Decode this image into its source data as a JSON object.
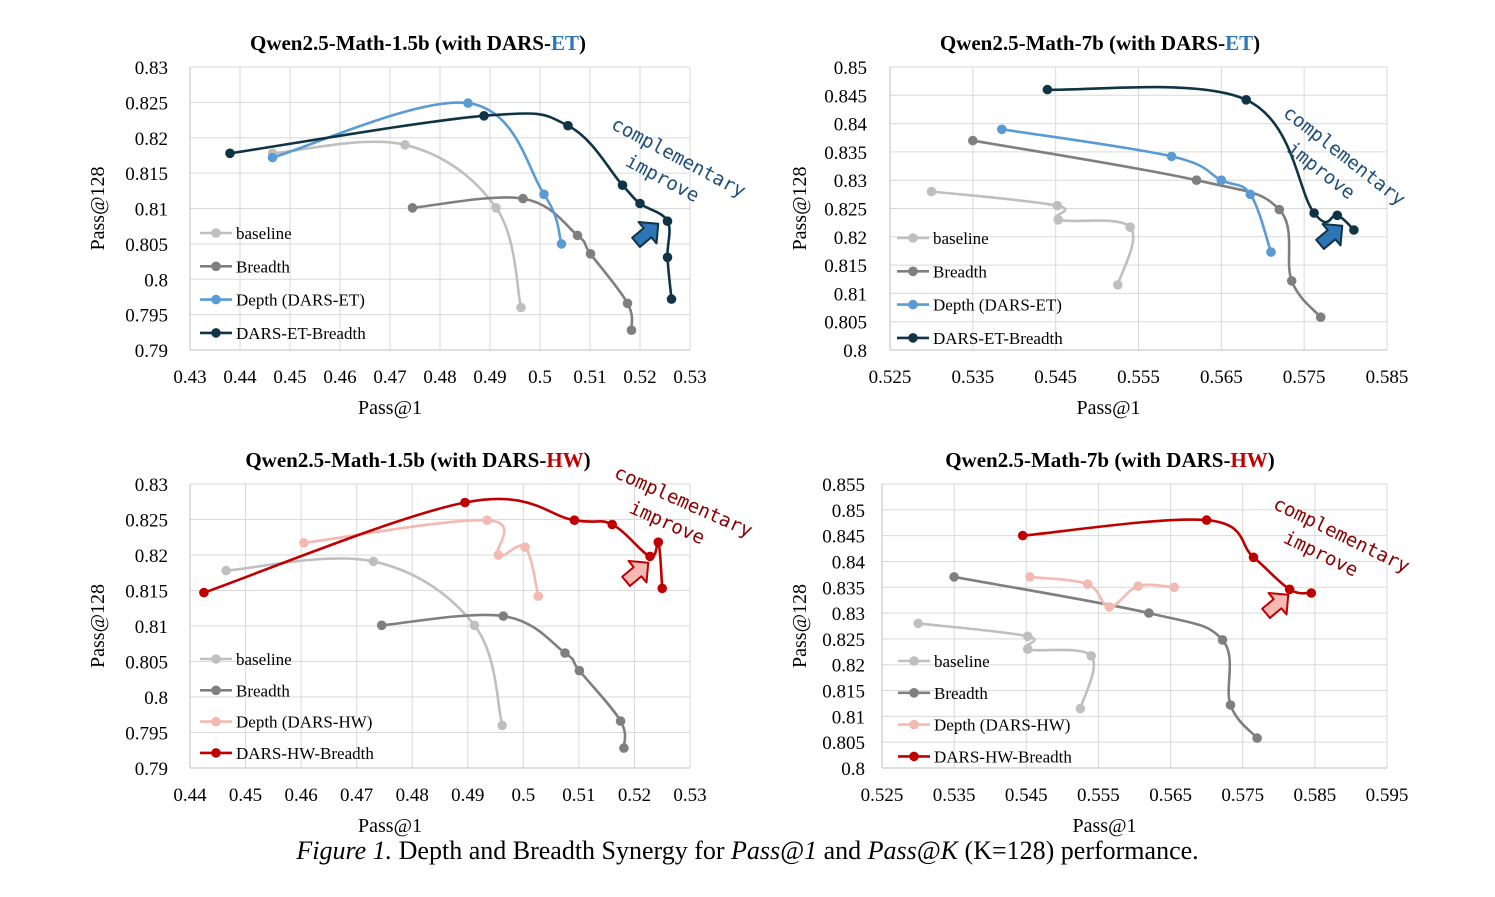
{
  "caption": {
    "label": "Figure 1.",
    "text_a": " Depth and Breadth Synergy for ",
    "em1": "Pass@1",
    "text_b": " and ",
    "em2": "Pass@K",
    "text_c": " (K=128) performance."
  },
  "annotation": {
    "line1": "complementary",
    "line2": "improve"
  },
  "colors": {
    "baseline": "#bfbfbf",
    "breadth": "#7f7f7f",
    "depth_et": "#5b9bd5",
    "et_breadth": "#0f3446",
    "depth_hw": "#f4b9b2",
    "hw_breadth": "#c00000",
    "et_accent": "#2e75b6",
    "hw_accent": "#c00000"
  },
  "chart_data": [
    {
      "type": "line",
      "title": "Qwen2.5-Math-1.5b (with DARS-",
      "title_accent": "ET",
      "title_end": ")",
      "xlabel": "Pass@1",
      "ylabel": "Pass@128",
      "xlim": [
        0.43,
        0.53
      ],
      "ylim": [
        0.79,
        0.83
      ],
      "xticks": [
        0.43,
        0.44,
        0.45,
        0.46,
        0.47,
        0.48,
        0.49,
        0.5,
        0.51,
        0.52,
        0.53
      ],
      "xtick_labels": [
        "0.43",
        "0.44",
        "0.45",
        "0.46",
        "0.47",
        "0.48",
        "0.49",
        "0.5",
        "0.51",
        "0.52",
        "0.53"
      ],
      "yticks": [
        0.79,
        0.795,
        0.8,
        0.805,
        0.81,
        0.815,
        0.82,
        0.825,
        0.83
      ],
      "ytick_labels": [
        "0.79",
        "0.795",
        "0.8",
        "0.805",
        "0.81",
        "0.815",
        "0.82",
        "0.825",
        "0.83"
      ],
      "legend_position": "bottom-left",
      "grid": true,
      "series": [
        {
          "name": "baseline",
          "color": "#bfbfbf",
          "points": [
            [
              0.4465,
              0.8178
            ],
            [
              0.473,
              0.819
            ],
            [
              0.4912,
              0.8101
            ],
            [
              0.4962,
              0.796
            ]
          ]
        },
        {
          "name": "Breadth",
          "color": "#7f7f7f",
          "points": [
            [
              0.4745,
              0.8101
            ],
            [
              0.4966,
              0.8114
            ],
            [
              0.5075,
              0.8062
            ],
            [
              0.5101,
              0.8036
            ],
            [
              0.5175,
              0.7966
            ],
            [
              0.5183,
              0.7928
            ]
          ]
        },
        {
          "name": "Depth (DARS-ET)",
          "color": "#5b9bd5",
          "points": [
            [
              0.4465,
              0.8172
            ],
            [
              0.4856,
              0.8249
            ],
            [
              0.5008,
              0.812
            ],
            [
              0.5043,
              0.805
            ]
          ]
        },
        {
          "name": "DARS-ET-Breadth",
          "color": "#0f3446",
          "points": [
            [
              0.438,
              0.8178
            ],
            [
              0.4888,
              0.8231
            ],
            [
              0.5056,
              0.8217
            ],
            [
              0.5165,
              0.8133
            ],
            [
              0.52,
              0.8107
            ],
            [
              0.5255,
              0.8082
            ],
            [
              0.5255,
              0.8031
            ],
            [
              0.5263,
              0.7972
            ]
          ]
        }
      ]
    },
    {
      "type": "line",
      "title": "Qwen2.5-Math-7b (with DARS-",
      "title_accent": "ET",
      "title_end": ")",
      "xlabel": "Pass@1",
      "ylabel": "Pass@128",
      "xlim": [
        0.525,
        0.585
      ],
      "ylim": [
        0.8,
        0.85
      ],
      "xticks": [
        0.525,
        0.535,
        0.545,
        0.555,
        0.565,
        0.575,
        0.585
      ],
      "xtick_labels": [
        "0.525",
        "0.535",
        "0.545",
        "0.555",
        "0.565",
        "0.575",
        "0.585"
      ],
      "yticks": [
        0.8,
        0.805,
        0.81,
        0.815,
        0.82,
        0.825,
        0.83,
        0.835,
        0.84,
        0.845,
        0.85
      ],
      "ytick_labels": [
        "0.8",
        "0.805",
        "0.81",
        "0.815",
        "0.82",
        "0.825",
        "0.83",
        "0.835",
        "0.84",
        "0.845",
        "0.85"
      ],
      "legend_position": "bottom-left",
      "grid": true,
      "series": [
        {
          "name": "baseline",
          "color": "#bfbfbf",
          "points": [
            [
              0.53,
              0.828
            ],
            [
              0.5452,
              0.8255
            ],
            [
              0.5453,
              0.823
            ],
            [
              0.554,
              0.8217
            ],
            [
              0.5525,
              0.8115
            ]
          ]
        },
        {
          "name": "Breadth",
          "color": "#7f7f7f",
          "points": [
            [
              0.535,
              0.837
            ],
            [
              0.562,
              0.83
            ],
            [
              0.572,
              0.8248
            ],
            [
              0.5735,
              0.8122
            ],
            [
              0.577,
              0.8058
            ]
          ]
        },
        {
          "name": "Depth (DARS-ET)",
          "color": "#5b9bd5",
          "points": [
            [
              0.5385,
              0.839
            ],
            [
              0.559,
              0.8342
            ],
            [
              0.565,
              0.83
            ],
            [
              0.5685,
              0.8275
            ],
            [
              0.571,
              0.8173
            ]
          ]
        },
        {
          "name": "DARS-ET-Breadth",
          "color": "#0f3446",
          "points": [
            [
              0.544,
              0.846
            ],
            [
              0.568,
              0.8442
            ],
            [
              0.5762,
              0.8242
            ],
            [
              0.579,
              0.8238
            ],
            [
              0.581,
              0.8212
            ]
          ]
        }
      ]
    },
    {
      "type": "line",
      "title": "Qwen2.5-Math-1.5b (with DARS-",
      "title_accent": "HW",
      "title_end": ")",
      "xlabel": "Pass@1",
      "ylabel": "Pass@128",
      "xlim": [
        0.44,
        0.53
      ],
      "ylim": [
        0.79,
        0.83
      ],
      "xticks": [
        0.44,
        0.45,
        0.46,
        0.47,
        0.48,
        0.49,
        0.5,
        0.51,
        0.52,
        0.53
      ],
      "xtick_labels": [
        "0.44",
        "0.45",
        "0.46",
        "0.47",
        "0.48",
        "0.49",
        "0.5",
        "0.51",
        "0.52",
        "0.53"
      ],
      "yticks": [
        0.79,
        0.795,
        0.8,
        0.805,
        0.81,
        0.815,
        0.82,
        0.825,
        0.83
      ],
      "ytick_labels": [
        "0.79",
        "0.795",
        "0.8",
        "0.805",
        "0.81",
        "0.815",
        "0.82",
        "0.825",
        "0.83"
      ],
      "legend_position": "bottom-left",
      "grid": true,
      "series": [
        {
          "name": "baseline",
          "color": "#bfbfbf",
          "points": [
            [
              0.4465,
              0.8178
            ],
            [
              0.473,
              0.8191
            ],
            [
              0.4912,
              0.8101
            ],
            [
              0.4962,
              0.796
            ]
          ]
        },
        {
          "name": "Breadth",
          "color": "#7f7f7f",
          "points": [
            [
              0.4745,
              0.8101
            ],
            [
              0.4964,
              0.8114
            ],
            [
              0.5075,
              0.8062
            ],
            [
              0.5101,
              0.8037
            ],
            [
              0.5175,
              0.7966
            ],
            [
              0.5181,
              0.7928
            ]
          ]
        },
        {
          "name": "Depth (DARS-HW)",
          "color": "#f4b9b2",
          "points": [
            [
              0.4605,
              0.8217
            ],
            [
              0.4935,
              0.8249
            ],
            [
              0.4955,
              0.82
            ],
            [
              0.5003,
              0.8211
            ],
            [
              0.5027,
              0.8142
            ]
          ]
        },
        {
          "name": "DARS-HW-Breadth",
          "color": "#c00000",
          "points": [
            [
              0.4425,
              0.8147
            ],
            [
              0.4895,
              0.8274
            ],
            [
              0.5092,
              0.8249
            ],
            [
              0.516,
              0.8243
            ],
            [
              0.5228,
              0.8198
            ],
            [
              0.5243,
              0.8218
            ],
            [
              0.525,
              0.8153
            ]
          ]
        }
      ]
    },
    {
      "type": "line",
      "title": "Qwen2.5-Math-7b (with DARS-",
      "title_accent": "HW",
      "title_end": ")",
      "xlabel": "Pass@1",
      "ylabel": "Pass@128",
      "xlim": [
        0.525,
        0.595
      ],
      "ylim": [
        0.8,
        0.855
      ],
      "xticks": [
        0.525,
        0.535,
        0.545,
        0.555,
        0.565,
        0.575,
        0.585,
        0.595
      ],
      "xtick_labels": [
        "0.525",
        "0.535",
        "0.545",
        "0.555",
        "0.565",
        "0.575",
        "0.585",
        "0.595"
      ],
      "yticks": [
        0.8,
        0.805,
        0.81,
        0.815,
        0.82,
        0.825,
        0.83,
        0.835,
        0.84,
        0.845,
        0.85,
        0.855
      ],
      "ytick_labels": [
        "0.8",
        "0.805",
        "0.81",
        "0.815",
        "0.82",
        "0.825",
        "0.83",
        "0.835",
        "0.84",
        "0.845",
        "0.85",
        "0.855"
      ],
      "legend_position": "bottom-left",
      "grid": true,
      "series": [
        {
          "name": "baseline",
          "color": "#bfbfbf",
          "points": [
            [
              0.53,
              0.828
            ],
            [
              0.5452,
              0.8255
            ],
            [
              0.5452,
              0.823
            ],
            [
              0.554,
              0.8217
            ],
            [
              0.5525,
              0.8115
            ]
          ]
        },
        {
          "name": "Breadth",
          "color": "#7f7f7f",
          "points": [
            [
              0.535,
              0.837
            ],
            [
              0.562,
              0.83
            ],
            [
              0.5722,
              0.8248
            ],
            [
              0.5733,
              0.8122
            ],
            [
              0.577,
              0.8058
            ]
          ]
        },
        {
          "name": "Depth (DARS-HW)",
          "color": "#f4b9b2",
          "points": [
            [
              0.5455,
              0.837
            ],
            [
              0.5535,
              0.8356
            ],
            [
              0.5565,
              0.8312
            ],
            [
              0.5605,
              0.8352
            ],
            [
              0.5655,
              0.835
            ]
          ]
        },
        {
          "name": "DARS-HW-Breadth",
          "color": "#c00000",
          "points": [
            [
              0.5445,
              0.845
            ],
            [
              0.57,
              0.848
            ],
            [
              0.5765,
              0.8408
            ],
            [
              0.5815,
              0.8346
            ],
            [
              0.5845,
              0.8339
            ]
          ]
        }
      ]
    }
  ]
}
